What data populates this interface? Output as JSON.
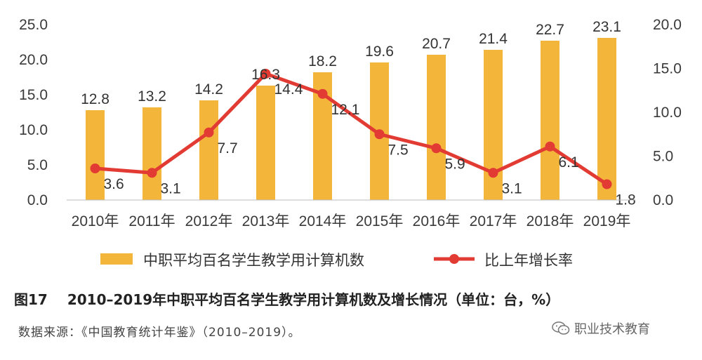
{
  "chart_data": {
    "type": "bar+line",
    "categories": [
      "2010年",
      "2011年",
      "2012年",
      "2013年",
      "2014年",
      "2015年",
      "2016年",
      "2017年",
      "2018年",
      "2019年"
    ],
    "series": [
      {
        "name": "中职平均百名学生教学用计算机数",
        "type": "bar",
        "axis": "left",
        "color": "#F3B63B",
        "values": [
          12.8,
          13.2,
          14.2,
          16.3,
          18.2,
          19.6,
          20.7,
          21.4,
          22.7,
          23.1
        ]
      },
      {
        "name": "比上年增长率",
        "type": "line",
        "axis": "right",
        "color": "#E23B33",
        "values": [
          3.6,
          3.1,
          7.7,
          14.4,
          12.1,
          7.5,
          5.9,
          3.1,
          6.1,
          1.8
        ]
      }
    ],
    "left_axis": {
      "ylim": [
        0,
        25
      ],
      "ticks": [
        "0.0",
        "5.0",
        "10.0",
        "15.0",
        "20.0",
        "25.0"
      ]
    },
    "right_axis": {
      "ylim": [
        0,
        20
      ],
      "ticks": [
        "0.0",
        "5.0",
        "10.0",
        "15.0",
        "20.0"
      ]
    },
    "grid": false,
    "legend_position": "bottom"
  },
  "caption": {
    "figure_no": "图17",
    "title": "2010–2019年中职平均百名学生教学用计算机数及增长情况（单位：台，%）"
  },
  "source": "数据来源：《中国教育统计年鉴》（2010–2019）。",
  "watermark": {
    "text": "职业技术教育",
    "icon": "wechat-icon"
  }
}
